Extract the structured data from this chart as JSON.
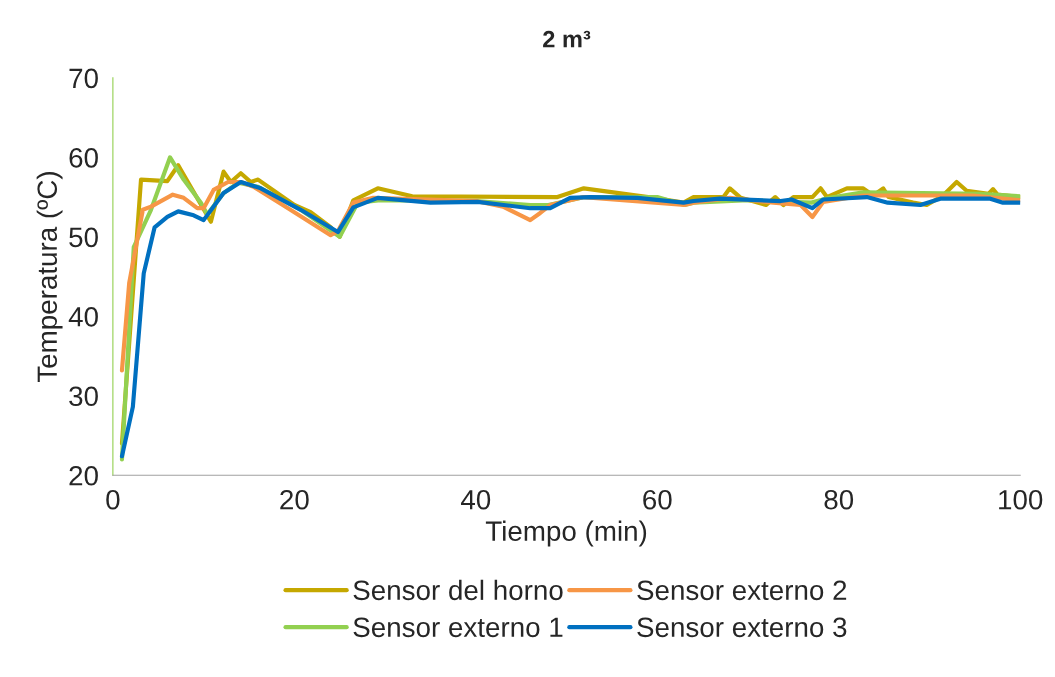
{
  "chart_data": {
    "type": "line",
    "title": "2 m³",
    "xlabel": "Tiempo (min)",
    "ylabel": "Temperatura (ºC)",
    "xlim": [
      0,
      100
    ],
    "xticks": [
      0,
      20,
      40,
      60,
      80,
      100
    ],
    "ylim": [
      20,
      70
    ],
    "yticks": [
      20,
      30,
      40,
      50,
      60,
      70
    ],
    "grid": false,
    "legend": "bottom",
    "marker": "none",
    "line_style": "solid",
    "series": [
      {
        "name": "Sensor del horno",
        "color": "#c5a800",
        "x": [
          1,
          3.1,
          6,
          7.2,
          10.8,
          12.2,
          13,
          14.1,
          15.2,
          16,
          20,
          21.8,
          24,
          25,
          26.5,
          29.2,
          33,
          49,
          51.9,
          59,
          62.9,
          64,
          67.3,
          68,
          69.2,
          72,
          73,
          73.9,
          75,
          77.1,
          78,
          78.7,
          80.9,
          82.7,
          83.8,
          84.9,
          85.5,
          88.2,
          89.7,
          91.5,
          93,
          94.1,
          96.5,
          97,
          97.5,
          100
        ],
        "values": [
          24,
          57.2,
          57,
          59,
          51.9,
          58.2,
          56.9,
          58,
          56.9,
          57.2,
          54,
          53.1,
          51.2,
          50,
          54.6,
          56.1,
          55.1,
          55,
          56.1,
          55,
          54.3,
          55,
          55,
          56.1,
          54.9,
          54,
          55,
          54,
          55,
          55,
          56.1,
          55,
          56.1,
          56.1,
          55.2,
          56.1,
          55,
          54.3,
          54,
          55.2,
          56.9,
          55.8,
          55.4,
          56,
          55.3,
          55
        ]
      },
      {
        "name": "Sensor externo 1",
        "color": "#92d050",
        "x": [
          1,
          2.3,
          4.2,
          6.3,
          7.8,
          9.7,
          10.4,
          12.2,
          13.8,
          16,
          20.7,
          25,
          27,
          29.5,
          40,
          46,
          48,
          52,
          60,
          63,
          64,
          70,
          77,
          79,
          82.7,
          95.6,
          100
        ],
        "values": [
          22,
          48.7,
          53.4,
          60,
          57.2,
          54.3,
          52.8,
          55.5,
          56.8,
          56.3,
          53.4,
          50,
          54.3,
          54.6,
          54.5,
          54,
          54,
          55,
          55,
          54,
          54.3,
          54.6,
          54.3,
          54.9,
          55.6,
          55.4,
          55.1
        ]
      },
      {
        "name": "Sensor externo 2",
        "color": "#f79646",
        "x": [
          1,
          1.8,
          3.3,
          4.2,
          6.6,
          7.8,
          9.3,
          10,
          11.1,
          12.7,
          14.1,
          15.5,
          19.3,
          24,
          24.8,
          26.5,
          28.7,
          40,
          43,
          46,
          47.1,
          48.2,
          51.9,
          63,
          64,
          68,
          72.8,
          75.8,
          77.1,
          78.3,
          82.7,
          94.8,
          100
        ],
        "values": [
          33.2,
          44.2,
          53.4,
          53.8,
          55.3,
          54.9,
          53.6,
          53.6,
          55.9,
          56.9,
          56.9,
          56.3,
          53.6,
          50.2,
          50.7,
          54.3,
          54.9,
          54.5,
          53.8,
          52.1,
          53,
          54,
          55,
          54,
          54.3,
          54.9,
          54.3,
          54,
          52.5,
          54.4,
          55.2,
          55.2,
          54.6
        ]
      },
      {
        "name": "Sensor externo 3",
        "color": "#0070c0",
        "x": [
          1,
          2.2,
          3.4,
          4.6,
          6,
          7.2,
          8.9,
          10,
          12.2,
          14.1,
          16.3,
          20.7,
          24.8,
          26.5,
          29.2,
          35,
          40.2,
          46,
          48.2,
          50.4,
          52.6,
          57.8,
          62.9,
          64,
          66.9,
          73.6,
          74.8,
          77.1,
          78.3,
          83.1,
          85.4,
          89,
          91.2,
          96.7,
          98.1,
          100
        ],
        "values": [
          22.4,
          28.6,
          45.4,
          51.2,
          52.5,
          53.2,
          52.7,
          52.1,
          55.5,
          56.9,
          56.1,
          53.4,
          50.6,
          53.7,
          54.9,
          54.3,
          54.4,
          53.6,
          53.6,
          54.9,
          55,
          54.9,
          54.3,
          54.5,
          54.8,
          54.5,
          54.7,
          53.6,
          54.7,
          55,
          54.3,
          54,
          54.8,
          54.8,
          54.3,
          54.3
        ]
      }
    ]
  }
}
